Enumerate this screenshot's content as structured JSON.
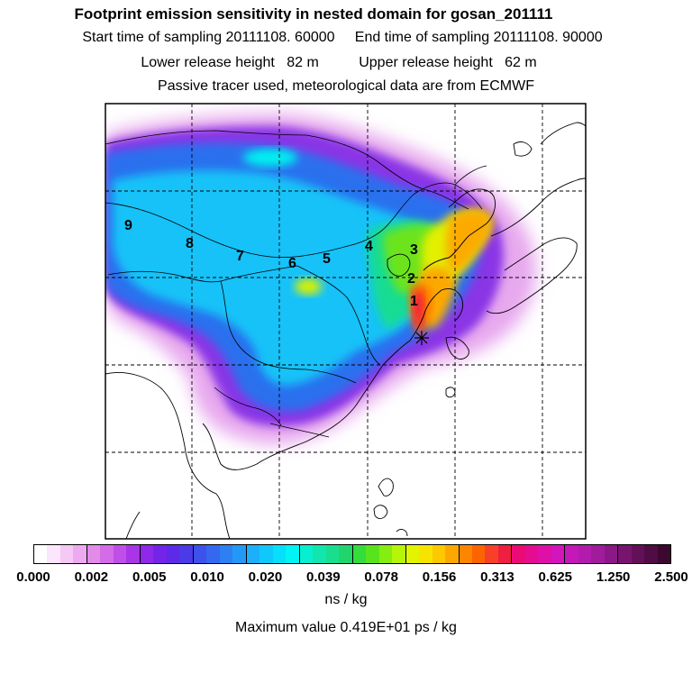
{
  "header": {
    "title": "Footprint emission sensitivity in nested domain for gosan_201111",
    "sampling": "Start time of sampling 20111108. 60000     End time of sampling 20111108. 90000",
    "release": "Lower release height   82 m          Upper release height   62 m",
    "source": "Passive tracer used, meteorological data are from ECMWF"
  },
  "map": {
    "region_labels": [
      "1",
      "2",
      "3",
      "4",
      "5",
      "6",
      "7",
      "8",
      "9"
    ]
  },
  "colorbar": {
    "tick_labels": [
      "0.000",
      "0.002",
      "0.005",
      "0.010",
      "0.020",
      "0.039",
      "0.078",
      "0.156",
      "0.313",
      "0.625",
      "1.250",
      "2.500"
    ],
    "colors": [
      "#ffffff",
      "#fbe6fb",
      "#f5c8f5",
      "#eeaaf0",
      "#e28be8",
      "#d36ce6",
      "#c04ee8",
      "#a934e8",
      "#8f28e8",
      "#7424e8",
      "#5c2ae8",
      "#4a3ae8",
      "#3c52ea",
      "#3468ee",
      "#2c80f2",
      "#2498f6",
      "#1cb0fa",
      "#10c8fc",
      "#06e0fc",
      "#00f4f4",
      "#08eed0",
      "#10e6ae",
      "#18de8e",
      "#20d66c",
      "#34dc3c",
      "#58e41c",
      "#84ee10",
      "#b6f408",
      "#e2f400",
      "#f6e400",
      "#fcc800",
      "#fca800",
      "#fc8600",
      "#fc6400",
      "#f84028",
      "#f01e40",
      "#ea0c74",
      "#e40c90",
      "#de10a8",
      "#d414bc",
      "#c418b8",
      "#b21cac",
      "#a01c9c",
      "#8c1888",
      "#781470",
      "#641058",
      "#500c44",
      "#3c0830"
    ],
    "unit": "ns / kg"
  },
  "footer": {
    "max_value": "Maximum value  0.419E+01 ps / kg"
  }
}
